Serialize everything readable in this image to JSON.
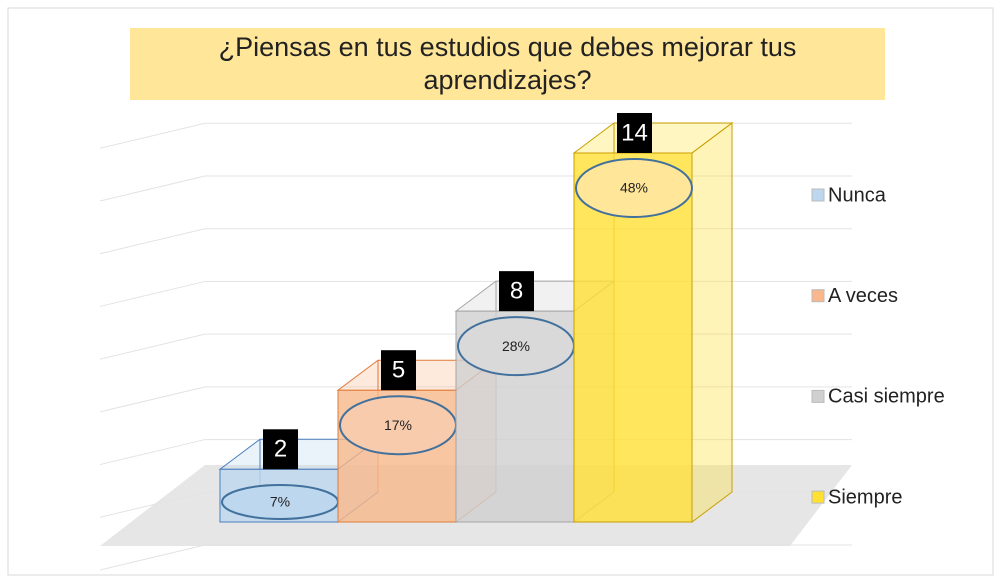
{
  "chart_data": {
    "type": "bar3d",
    "title": "¿Piensas en tus estudios que debes mejorar tus aprendizajes?",
    "categories": [
      "Nunca",
      "A veces",
      "Casi siempre",
      "Siempre"
    ],
    "values": [
      2,
      5,
      8,
      14
    ],
    "percent_labels": [
      "7%",
      "17%",
      "28%",
      "48%"
    ],
    "colors": [
      "#bdd7ee",
      "#f8b88b",
      "#d0d0d0",
      "#ffe033"
    ],
    "ylim": [
      0,
      16
    ],
    "yticks": [
      0,
      2,
      4,
      6,
      8,
      10,
      12,
      14,
      16
    ],
    "grid": true,
    "legend": "right"
  }
}
